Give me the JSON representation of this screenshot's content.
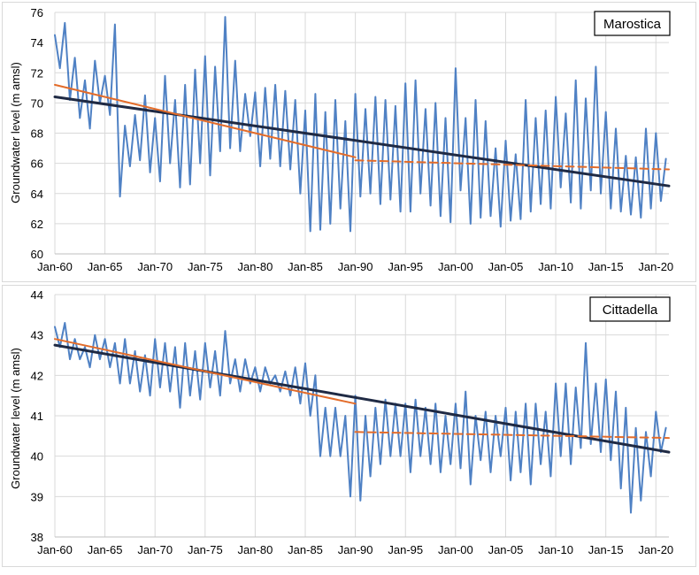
{
  "chart_data": [
    {
      "type": "line",
      "panel_label": "Marostica",
      "ylabel": "Groundwater level (m amsl)",
      "xlabel": "",
      "xlim": [
        1960,
        2021.3
      ],
      "ylim": [
        60,
        76
      ],
      "x_ticks": [
        1960,
        1965,
        1970,
        1975,
        1980,
        1985,
        1990,
        1995,
        2000,
        2005,
        2010,
        2015,
        2020
      ],
      "x_tick_labels": [
        "Jan-60",
        "Jan-65",
        "Jan-70",
        "Jan-75",
        "Jan-80",
        "Jan-85",
        "Jan-90",
        "Jan-95",
        "Jan-00",
        "Jan-05",
        "Jan-10",
        "Jan-15",
        "Jan-20"
      ],
      "y_ticks": [
        60,
        62,
        64,
        66,
        68,
        70,
        72,
        74,
        76
      ],
      "y_tick_labels": [
        "60",
        "62",
        "64",
        "66",
        "68",
        "70",
        "72",
        "74",
        "76"
      ],
      "grid": true,
      "series": [
        {
          "role": "observed",
          "color": "#4f81c4",
          "style": "solid",
          "x": [
            1960.0,
            1960.5,
            1961.0,
            1961.5,
            1962.0,
            1962.5,
            1963.0,
            1963.5,
            1964.0,
            1964.5,
            1965.0,
            1965.5,
            1966.0,
            1966.5,
            1967.0,
            1967.5,
            1968.0,
            1968.5,
            1969.0,
            1969.5,
            1970.0,
            1970.5,
            1971.0,
            1971.5,
            1972.0,
            1972.5,
            1973.0,
            1973.5,
            1974.0,
            1974.5,
            1975.0,
            1975.5,
            1976.0,
            1976.5,
            1977.0,
            1977.5,
            1978.0,
            1978.5,
            1979.0,
            1979.5,
            1980.0,
            1980.5,
            1981.0,
            1981.5,
            1982.0,
            1982.5,
            1983.0,
            1983.5,
            1984.0,
            1984.5,
            1985.0,
            1985.5,
            1986.0,
            1986.5,
            1987.0,
            1987.5,
            1988.0,
            1988.5,
            1989.0,
            1989.5,
            1990.0,
            1990.5,
            1991.0,
            1991.5,
            1992.0,
            1992.5,
            1993.0,
            1993.5,
            1994.0,
            1994.5,
            1995.0,
            1995.5,
            1996.0,
            1996.5,
            1997.0,
            1997.5,
            1998.0,
            1998.5,
            1999.0,
            1999.5,
            2000.0,
            2000.5,
            2001.0,
            2001.5,
            2002.0,
            2002.5,
            2003.0,
            2003.5,
            2004.0,
            2004.5,
            2005.0,
            2005.5,
            2006.0,
            2006.5,
            2007.0,
            2007.5,
            2008.0,
            2008.5,
            2009.0,
            2009.5,
            2010.0,
            2010.5,
            2011.0,
            2011.5,
            2012.0,
            2012.5,
            2013.0,
            2013.5,
            2014.0,
            2014.5,
            2015.0,
            2015.5,
            2016.0,
            2016.5,
            2017.0,
            2017.5,
            2018.0,
            2018.5,
            2019.0,
            2019.5,
            2020.0,
            2020.5,
            2021.0
          ],
          "values": [
            74.5,
            72.3,
            75.3,
            70.2,
            73.0,
            69.0,
            71.5,
            68.3,
            72.8,
            70.0,
            71.8,
            69.2,
            75.2,
            63.8,
            68.5,
            65.8,
            69.2,
            66.2,
            70.5,
            65.4,
            69.0,
            64.8,
            71.8,
            66.0,
            70.2,
            64.4,
            71.2,
            64.6,
            72.2,
            66.0,
            73.1,
            65.2,
            72.4,
            66.8,
            75.7,
            67.0,
            72.8,
            66.8,
            70.6,
            67.8,
            70.7,
            65.8,
            71.0,
            66.3,
            71.2,
            65.8,
            70.8,
            65.6,
            70.2,
            64.0,
            69.5,
            61.5,
            70.6,
            61.6,
            69.4,
            62.0,
            70.2,
            63.0,
            68.8,
            61.5,
            70.6,
            63.8,
            69.6,
            64.0,
            70.4,
            63.3,
            70.2,
            63.6,
            69.8,
            62.8,
            71.3,
            62.8,
            71.5,
            64.0,
            69.6,
            63.2,
            70.0,
            62.5,
            69.0,
            62.1,
            72.3,
            64.2,
            69.0,
            62.0,
            70.2,
            62.4,
            68.8,
            62.5,
            67.0,
            61.8,
            67.5,
            62.2,
            66.6,
            62.3,
            70.2,
            62.8,
            69.0,
            63.3,
            69.5,
            63.0,
            70.4,
            64.4,
            69.3,
            63.4,
            71.5,
            63.0,
            70.3,
            64.2,
            72.4,
            64.0,
            69.4,
            63.0,
            68.3,
            62.8,
            66.5,
            62.6,
            66.4,
            62.4,
            68.3,
            63.0,
            68.0,
            63.5,
            66.3
          ]
        },
        {
          "role": "linear trend 1960-2020",
          "color": "#1f2a44",
          "style": "solid",
          "x": [
            1960,
            2021.3
          ],
          "values": [
            70.4,
            64.5
          ]
        },
        {
          "role": "trend 1960-1990",
          "color": "#e36c2a",
          "style": "solid",
          "x": [
            1960,
            1990
          ],
          "values": [
            71.2,
            66.4
          ]
        },
        {
          "role": "trend 1990-2020",
          "color": "#e36c2a",
          "style": "dashed",
          "x": [
            1990,
            2021.3
          ],
          "values": [
            66.2,
            65.6
          ]
        }
      ]
    },
    {
      "type": "line",
      "panel_label": "Cittadella",
      "ylabel": "Groundwater level (m amsl)",
      "xlabel": "",
      "xlim": [
        1960,
        2021.3
      ],
      "ylim": [
        38,
        44
      ],
      "x_ticks": [
        1960,
        1965,
        1970,
        1975,
        1980,
        1985,
        1990,
        1995,
        2000,
        2005,
        2010,
        2015,
        2020
      ],
      "x_tick_labels": [
        "Jan-60",
        "Jan-65",
        "Jan-70",
        "Jan-75",
        "Jan-80",
        "Jan-85",
        "Jan-90",
        "Jan-95",
        "Jan-00",
        "Jan-05",
        "Jan-10",
        "Jan-15",
        "Jan-20"
      ],
      "y_ticks": [
        38,
        39,
        40,
        41,
        42,
        43,
        44
      ],
      "y_tick_labels": [
        "38",
        "39",
        "40",
        "41",
        "42",
        "43",
        "44"
      ],
      "grid": true,
      "series": [
        {
          "role": "observed",
          "color": "#4f81c4",
          "style": "solid",
          "x": [
            1960.0,
            1960.5,
            1961.0,
            1961.5,
            1962.0,
            1962.5,
            1963.0,
            1963.5,
            1964.0,
            1964.5,
            1965.0,
            1965.5,
            1966.0,
            1966.5,
            1967.0,
            1967.5,
            1968.0,
            1968.5,
            1969.0,
            1969.5,
            1970.0,
            1970.5,
            1971.0,
            1971.5,
            1972.0,
            1972.5,
            1973.0,
            1973.5,
            1974.0,
            1974.5,
            1975.0,
            1975.5,
            1976.0,
            1976.5,
            1977.0,
            1977.5,
            1978.0,
            1978.5,
            1979.0,
            1979.5,
            1980.0,
            1980.5,
            1981.0,
            1981.5,
            1982.0,
            1982.5,
            1983.0,
            1983.5,
            1984.0,
            1984.5,
            1985.0,
            1985.5,
            1986.0,
            1986.5,
            1987.0,
            1987.5,
            1988.0,
            1988.5,
            1989.0,
            1989.5,
            1990.0,
            1990.5,
            1991.0,
            1991.5,
            1992.0,
            1992.5,
            1993.0,
            1993.5,
            1994.0,
            1994.5,
            1995.0,
            1995.5,
            1996.0,
            1996.5,
            1997.0,
            1997.5,
            1998.0,
            1998.5,
            1999.0,
            1999.5,
            2000.0,
            2000.5,
            2001.0,
            2001.5,
            2002.0,
            2002.5,
            2003.0,
            2003.5,
            2004.0,
            2004.5,
            2005.0,
            2005.5,
            2006.0,
            2006.5,
            2007.0,
            2007.5,
            2008.0,
            2008.5,
            2009.0,
            2009.5,
            2010.0,
            2010.5,
            2011.0,
            2011.5,
            2012.0,
            2012.5,
            2013.0,
            2013.5,
            2014.0,
            2014.5,
            2015.0,
            2015.5,
            2016.0,
            2016.5,
            2017.0,
            2017.5,
            2018.0,
            2018.5,
            2019.0,
            2019.5,
            2020.0,
            2020.5,
            2021.0
          ],
          "values": [
            43.2,
            42.7,
            43.3,
            42.4,
            42.9,
            42.4,
            42.7,
            42.2,
            43.0,
            42.4,
            42.9,
            42.2,
            42.8,
            41.8,
            42.9,
            41.8,
            42.6,
            41.6,
            42.5,
            41.5,
            42.9,
            41.7,
            42.8,
            41.6,
            42.7,
            41.2,
            42.8,
            41.5,
            42.6,
            41.4,
            42.8,
            41.7,
            42.6,
            41.5,
            43.1,
            41.8,
            42.4,
            41.6,
            42.4,
            41.8,
            42.2,
            41.6,
            42.2,
            41.8,
            42.0,
            41.6,
            42.1,
            41.5,
            42.2,
            41.3,
            42.3,
            41.0,
            42.0,
            40.0,
            41.2,
            40.0,
            41.2,
            40.0,
            41.0,
            39.0,
            41.5,
            38.9,
            41.0,
            39.5,
            41.2,
            39.8,
            41.4,
            40.0,
            41.3,
            40.0,
            41.3,
            39.6,
            41.4,
            40.0,
            41.2,
            39.8,
            41.3,
            39.6,
            41.0,
            39.8,
            41.3,
            39.7,
            41.6,
            39.3,
            41.0,
            39.9,
            41.1,
            39.6,
            41.0,
            40.0,
            41.2,
            39.4,
            41.1,
            39.6,
            41.3,
            39.3,
            41.3,
            39.8,
            41.1,
            39.5,
            41.8,
            40.0,
            41.8,
            39.8,
            41.7,
            40.2,
            42.8,
            40.3,
            41.8,
            40.1,
            41.9,
            39.9,
            41.6,
            39.2,
            41.2,
            38.6,
            40.7,
            38.9,
            40.6,
            39.5,
            41.1,
            40.1,
            40.7
          ]
        },
        {
          "role": "linear trend 1960-2020",
          "color": "#1f2a44",
          "style": "solid",
          "x": [
            1960,
            2021.3
          ],
          "values": [
            42.75,
            40.1
          ]
        },
        {
          "role": "trend 1960-1990",
          "color": "#e36c2a",
          "style": "solid",
          "x": [
            1960,
            1990
          ],
          "values": [
            42.9,
            41.3
          ]
        },
        {
          "role": "trend 1990-2020",
          "color": "#e36c2a",
          "style": "dashed",
          "x": [
            1990,
            2021.3
          ],
          "values": [
            40.6,
            40.45
          ]
        }
      ]
    }
  ]
}
